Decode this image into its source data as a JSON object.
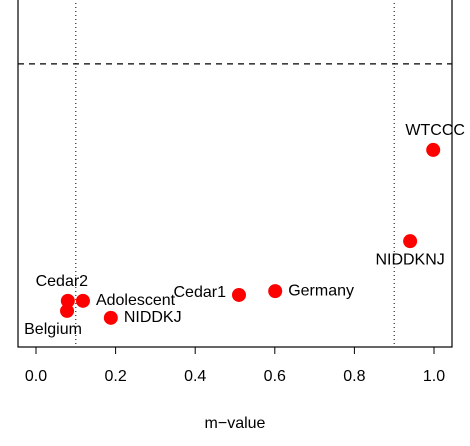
{
  "chart_data": {
    "type": "scatter",
    "x_label": "m−value",
    "labels": [
      "Belgium",
      "Cedar2",
      "Adolescent",
      "NIDDKJ",
      "Cedar1",
      "Germany",
      "NIDDKNJ",
      "WTCCC"
    ],
    "x": [
      0.078,
      0.08,
      0.118,
      0.188,
      0.51,
      0.601,
      0.94,
      0.998
    ],
    "values": [
      0.104,
      0.133,
      0.133,
      0.084,
      0.15,
      0.161,
      0.305,
      0.568
    ],
    "color": "#ff0000",
    "xlim": [
      0,
      1
    ],
    "ylim": [
      0,
      1
    ],
    "xticks": [
      {
        "value": 0,
        "label": "0.0"
      },
      {
        "value": 0.2,
        "label": "0.2"
      },
      {
        "value": 0.4,
        "label": "0.4"
      },
      {
        "value": 0.6,
        "label": "0.6"
      },
      {
        "value": 0.8,
        "label": "0.8"
      },
      {
        "value": 1,
        "label": "1.0"
      }
    ],
    "vlines": [
      0.1,
      0.9
    ],
    "hline": 0.816
  }
}
